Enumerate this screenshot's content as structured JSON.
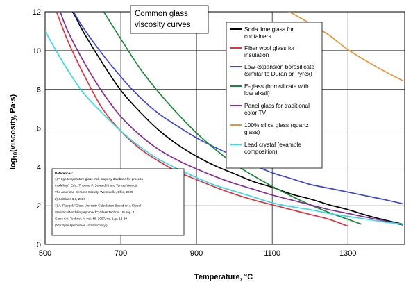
{
  "chart_data": {
    "type": "line",
    "title_lines": [
      "Common glass",
      "viscosity curves"
    ],
    "xlabel": "Temperature, °C",
    "ylabel_main": "log",
    "ylabel_sub": "10",
    "ylabel_rest": "(viscosity, Pa·s)",
    "xlim": [
      500,
      1450
    ],
    "ylim": [
      0,
      12
    ],
    "xticks": [
      500,
      700,
      900,
      1100,
      1300
    ],
    "yticks": [
      0,
      2,
      4,
      6,
      8,
      10,
      12
    ],
    "grid": true,
    "legend_position": "top-right",
    "series": [
      {
        "name_lines": [
          "Soda lime glass for",
          "containers"
        ],
        "color": "#000000",
        "x": [
          540,
          560,
          580,
          600,
          650,
          700,
          750,
          800,
          850,
          900,
          950,
          1000,
          1050,
          1100,
          1150,
          1200,
          1250,
          1300,
          1350,
          1400,
          1445
        ],
        "y": [
          13.0,
          12.4,
          11.75,
          11.0,
          9.4,
          7.95,
          6.85,
          5.9,
          5.15,
          4.55,
          4.05,
          3.65,
          3.25,
          2.95,
          2.6,
          2.35,
          2.05,
          1.8,
          1.5,
          1.25,
          1.05
        ]
      },
      {
        "name_lines": [
          "Fiber wool glass for",
          "insulation"
        ],
        "color": "#e8303c",
        "x": [
          530,
          560,
          600,
          650,
          700,
          750,
          800,
          850,
          900,
          950,
          1000,
          1050,
          1100,
          1150,
          1200,
          1250,
          1300
        ],
        "y": [
          12.0,
          10.5,
          8.85,
          7.05,
          5.85,
          4.95,
          4.3,
          3.75,
          3.35,
          2.95,
          2.6,
          2.3,
          2.05,
          1.8,
          1.55,
          1.3,
          0.95
        ]
      },
      {
        "name_lines": [
          "Low-expansion borosilicate",
          "(similar to Duran or Pyrex)"
        ],
        "color": "#3a45e0",
        "x": [
          575,
          600,
          650,
          700,
          750,
          800,
          850,
          900,
          950,
          1000,
          1050,
          1100,
          1150,
          1200,
          1250,
          1300,
          1350,
          1400,
          1445
        ],
        "y": [
          12.0,
          11.2,
          9.85,
          8.65,
          7.6,
          6.75,
          6.1,
          5.5,
          5.0,
          4.55,
          4.1,
          3.7,
          3.4,
          3.1,
          2.9,
          2.7,
          2.5,
          2.3,
          2.1
        ]
      },
      {
        "name_lines": [
          "E-glass (borosilicate with",
          "low alkali)"
        ],
        "color": "#1a8a36",
        "x": [
          655,
          700,
          750,
          800,
          850,
          900,
          950,
          1000,
          1050,
          1100,
          1150,
          1200,
          1250,
          1300,
          1335
        ],
        "y": [
          12.0,
          10.6,
          9.1,
          7.85,
          6.75,
          5.75,
          4.9,
          4.15,
          3.55,
          3.0,
          2.5,
          2.05,
          1.65,
          1.3,
          1.05
        ]
      },
      {
        "name_lines": [
          "Panel glass for traditional",
          "color TV"
        ],
        "color": "#8a2a9a",
        "x": [
          540,
          560,
          600,
          650,
          700,
          750,
          800,
          850,
          900,
          950,
          1000,
          1050,
          1100,
          1150,
          1200,
          1250,
          1300,
          1350,
          1400,
          1445
        ],
        "y": [
          12.0,
          11.0,
          9.5,
          7.9,
          6.6,
          5.65,
          4.9,
          4.35,
          3.9,
          3.5,
          3.15,
          2.85,
          2.55,
          2.3,
          2.05,
          1.8,
          1.6,
          1.4,
          1.2,
          1.0
        ]
      },
      {
        "name_lines": [
          "100% silica glass (quartz",
          "glass)"
        ],
        "color": "#f39030",
        "x": [
          1125,
          1150,
          1200,
          1250,
          1300,
          1350,
          1400,
          1445
        ],
        "y": [
          12.2,
          11.95,
          11.4,
          10.8,
          10.05,
          9.45,
          8.9,
          8.45
        ]
      },
      {
        "name_lines": [
          "Lead crystal (example",
          "composition)"
        ],
        "color": "#33dbe6",
        "x": [
          500,
          550,
          600,
          650,
          700,
          750,
          800,
          850,
          900,
          950,
          1000,
          1050,
          1100,
          1150,
          1200,
          1250,
          1300,
          1350,
          1400,
          1445
        ],
        "y": [
          11.0,
          9.3,
          7.85,
          6.8,
          5.85,
          5.05,
          4.4,
          3.9,
          3.45,
          3.05,
          2.75,
          2.45,
          2.15,
          1.95,
          1.8,
          1.6,
          1.45,
          1.3,
          1.15,
          1.05
        ]
      }
    ],
    "references": {
      "heading": "References:",
      "lines": [
        "1) \"High temperature glass melt property database for process",
        "modeling\"; Eds.: Thomas P. Seward III and Terese Vascott;",
        "The American Ceramic Society, Westerville, Ohio, 2005",
        "2) SciGlass 6.7, 2006",
        "3) A. Fluegel: \"Glass Viscosity Calculation Based on a Global",
        "Statistical Modeling Approach\"; Glass Technol.: Europ. J.",
        "Glass Sci. Technol. A, vol. 48, 2007, no. 1, p. 13-30",
        "(http://glassproperties.com/viscosity/)"
      ]
    }
  }
}
